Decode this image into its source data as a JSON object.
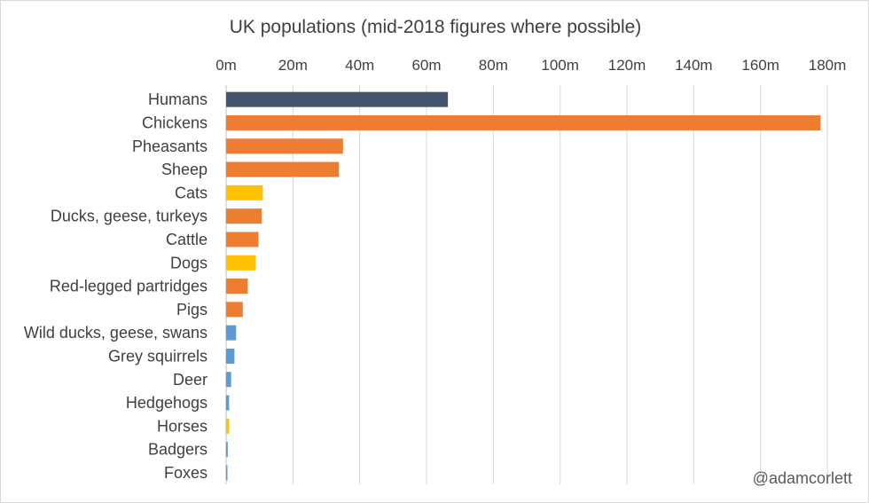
{
  "chart_data": {
    "type": "bar",
    "orientation": "horizontal",
    "title": "UK populations (mid-2018 figures where possible)",
    "x_axis_position": "top",
    "xlim": [
      0,
      180
    ],
    "x_ticks": [
      0,
      20,
      40,
      60,
      80,
      100,
      120,
      140,
      160,
      180
    ],
    "x_tick_labels": [
      "0m",
      "20m",
      "40m",
      "60m",
      "80m",
      "100m",
      "120m",
      "140m",
      "160m",
      "180m"
    ],
    "grid": true,
    "unit": "millions",
    "categories": [
      "Humans",
      "Chickens",
      "Pheasants",
      "Sheep",
      "Cats",
      "Ducks, geese, turkeys",
      "Cattle",
      "Dogs",
      "Red-legged partridges",
      "Pigs",
      "Wild ducks, geese, swans",
      "Grey squirrels",
      "Deer",
      "Hedgehogs",
      "Horses",
      "Badgers",
      "Foxes"
    ],
    "values": [
      66.4,
      178,
      35,
      33.8,
      11,
      10.7,
      9.7,
      8.9,
      6.5,
      5,
      3,
      2.5,
      1.5,
      0.9,
      0.9,
      0.5,
      0.4
    ],
    "colors": [
      "#44546a",
      "#ed7d31",
      "#ed7d31",
      "#ed7d31",
      "#ffc000",
      "#ed7d31",
      "#ed7d31",
      "#ffc000",
      "#ed7d31",
      "#ed7d31",
      "#5b9bd5",
      "#5b9bd5",
      "#5b9bd5",
      "#5b9bd5",
      "#ffc000",
      "#5b9bd5",
      "#5b9bd5"
    ]
  },
  "credit": "@adamcorlett"
}
